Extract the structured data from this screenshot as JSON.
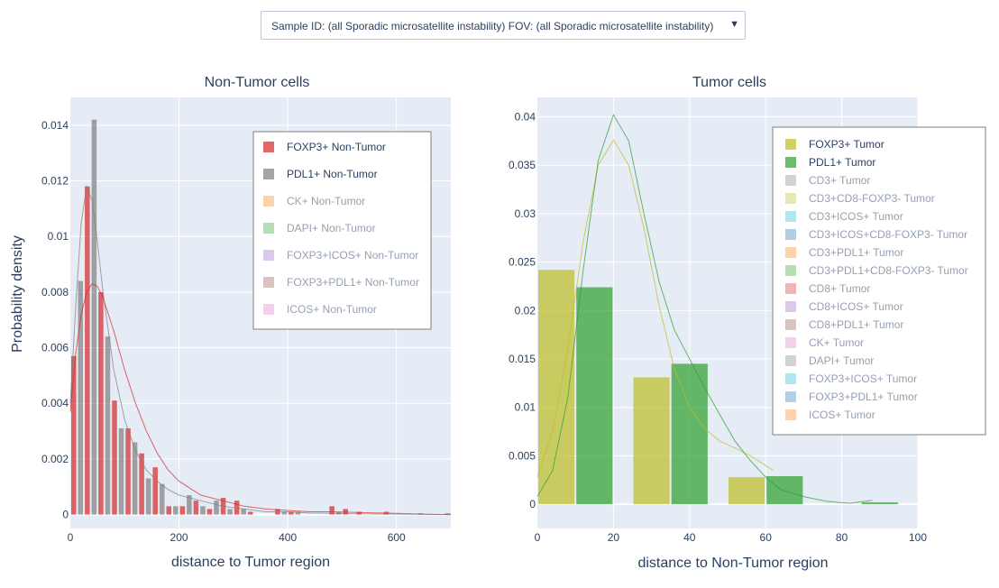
{
  "dropdown": {
    "label": "Sample ID: (all Sporadic microsatellite instability)   FOV: (all Sporadic microsatellite instability)",
    "arrow": "▼"
  },
  "y_axis_title": "Probability density",
  "chart_data": [
    {
      "type": "bar",
      "title": "Non-Tumor cells",
      "xlabel": "distance to Tumor region",
      "ylabel": "Probability density",
      "xlim": [
        0,
        700
      ],
      "ylim": [
        -0.0005,
        0.015
      ],
      "xticks": [
        0,
        200,
        400,
        600
      ],
      "yticks": [
        0,
        0.002,
        0.004,
        0.006,
        0.008,
        0.01,
        0.012,
        0.014
      ],
      "ytick_labels": [
        "0",
        "0.002",
        "0.004",
        "0.006",
        "0.008",
        "0.01",
        "0.012",
        "0.014"
      ],
      "bin_width": 25,
      "series": [
        {
          "name": "FOXP3+ Non-Tumor",
          "color": "#d62728",
          "opacity": 0.7,
          "active": true,
          "x": [
            12.5,
            37.5,
            62.5,
            87.5,
            112.5,
            137.5,
            162.5,
            187.5,
            212.5,
            237.5,
            262.5,
            287.5,
            312.5,
            337.5,
            362.5,
            387.5,
            412.5,
            437.5,
            462.5,
            487.5,
            512.5,
            537.5,
            562.5,
            587.5,
            612.5
          ],
          "values": [
            0.0057,
            0.0118,
            0.008,
            0.0041,
            0.0031,
            0.0022,
            0.0017,
            0.0003,
            0.0003,
            0.0005,
            0.0002,
            0.0006,
            0.0005,
            0.0001,
            0,
            0.0002,
            0.0001,
            0,
            0,
            0.0003,
            0.0002,
            0.0001,
            0,
            0.0001,
            0
          ]
        },
        {
          "name": "PDL1+ Non-Tumor",
          "color": "#7f7f7f",
          "opacity": 0.7,
          "active": true,
          "x": [
            12.5,
            37.5,
            62.5,
            87.5,
            112.5,
            137.5,
            162.5,
            187.5,
            212.5,
            237.5,
            262.5,
            287.5,
            312.5,
            337.5,
            362.5,
            387.5,
            412.5,
            437.5,
            462.5,
            487.5,
            512.5,
            537.5,
            562.5,
            587.5,
            612.5,
            637.5,
            662.5,
            687.5
          ],
          "values": [
            0.0084,
            0.0142,
            0.0064,
            0.0031,
            0.0026,
            0.0013,
            0.0011,
            0.0003,
            0.0007,
            0.0003,
            0.0005,
            0.0002,
            0.0002,
            0,
            0,
            0.0001,
            0.0001,
            0,
            0,
            0.0001,
            0,
            0,
            0,
            0,
            0,
            5e-05,
            0,
            5e-05
          ]
        },
        {
          "name": "CK+ Non-Tumor",
          "color": "#ff7f0e",
          "opacity": 0.35,
          "active": false,
          "x": [],
          "values": []
        },
        {
          "name": "DAPI+ Non-Tumor",
          "color": "#2ca02c",
          "opacity": 0.35,
          "active": false,
          "x": [],
          "values": []
        },
        {
          "name": "FOXP3+ICOS+ Non-Tumor",
          "color": "#9467bd",
          "opacity": 0.35,
          "active": false,
          "x": [],
          "values": []
        },
        {
          "name": "FOXP3+PDL1+ Non-Tumor",
          "color": "#8c564b",
          "opacity": 0.35,
          "active": false,
          "x": [],
          "values": []
        },
        {
          "name": "ICOS+ Non-Tumor",
          "color": "#e377c2",
          "opacity": 0.35,
          "active": false,
          "x": [],
          "values": []
        }
      ],
      "curves": [
        {
          "name": "FOXP3+ Non-Tumor",
          "color": "#d62728",
          "x": [
            0,
            10,
            20,
            30,
            40,
            50,
            60,
            80,
            100,
            120,
            140,
            160,
            180,
            200,
            240,
            280,
            320,
            360,
            400,
            440,
            480,
            520,
            560,
            600,
            640,
            700
          ],
          "y": [
            0.0037,
            0.0058,
            0.0072,
            0.008,
            0.0083,
            0.0082,
            0.0078,
            0.0066,
            0.0052,
            0.004,
            0.003,
            0.0022,
            0.0016,
            0.0012,
            0.0007,
            0.0005,
            0.0003,
            0.0002,
            0.00015,
            0.0001,
            0.0001,
            8e-05,
            6e-05,
            4e-05,
            2e-05,
            0.0
          ]
        },
        {
          "name": "PDL1+ Non-Tumor",
          "color": "#7f7f7f",
          "x": [
            0,
            10,
            20,
            30,
            40,
            50,
            60,
            80,
            100,
            120,
            140,
            160,
            180,
            200,
            240,
            280,
            320,
            360,
            400,
            440,
            480,
            520,
            560,
            600,
            640,
            700
          ],
          "y": [
            0.004,
            0.0075,
            0.0105,
            0.0118,
            0.0113,
            0.0098,
            0.008,
            0.0052,
            0.0034,
            0.0023,
            0.0016,
            0.0012,
            0.0009,
            0.0007,
            0.0005,
            0.0003,
            0.0002,
            0.0001,
            0.0001,
            5e-05,
            4e-05,
            3e-05,
            2e-05,
            2e-05,
            1e-05,
            0.0
          ]
        }
      ]
    },
    {
      "type": "bar",
      "title": "Tumor cells",
      "xlabel": "distance to Non-Tumor region",
      "xlim": [
        0,
        100
      ],
      "ylim": [
        -0.0025,
        0.042
      ],
      "xticks": [
        0,
        20,
        40,
        60,
        80,
        100
      ],
      "yticks": [
        0,
        0.005,
        0.01,
        0.015,
        0.02,
        0.025,
        0.03,
        0.035,
        0.04
      ],
      "ytick_labels": [
        "0",
        "0.005",
        "0.01",
        "0.015",
        "0.02",
        "0.025",
        "0.03",
        "0.035",
        "0.04"
      ],
      "bin_width": 20,
      "series": [
        {
          "name": "FOXP3+ Tumor",
          "color": "#bcbd22",
          "opacity": 0.7,
          "active": true,
          "x": [
            10,
            35,
            60
          ],
          "values": [
            0.0242,
            0.0131,
            0.0028
          ]
        },
        {
          "name": "PDL1+ Tumor",
          "color": "#2ca02c",
          "opacity": 0.7,
          "active": true,
          "x": [
            10,
            35,
            60,
            85
          ],
          "values": [
            0.0224,
            0.0145,
            0.0029,
            0.0002
          ]
        },
        {
          "name": "CD3+ Tumor",
          "color": "#7f7f7f",
          "opacity": 0.35,
          "active": false,
          "x": [],
          "values": []
        },
        {
          "name": "CD3+CD8-FOXP3- Tumor",
          "color": "#bcbd22",
          "opacity": 0.35,
          "active": false,
          "x": [],
          "values": []
        },
        {
          "name": "CD3+ICOS+ Tumor",
          "color": "#17becf",
          "opacity": 0.35,
          "active": false,
          "x": [],
          "values": []
        },
        {
          "name": "CD3+ICOS+CD8-FOXP3- Tumor",
          "color": "#1f77b4",
          "opacity": 0.35,
          "active": false,
          "x": [],
          "values": []
        },
        {
          "name": "CD3+PDL1+ Tumor",
          "color": "#ff7f0e",
          "opacity": 0.35,
          "active": false,
          "x": [],
          "values": []
        },
        {
          "name": "CD3+PDL1+CD8-FOXP3- Tumor",
          "color": "#2ca02c",
          "opacity": 0.35,
          "active": false,
          "x": [],
          "values": []
        },
        {
          "name": "CD8+ Tumor",
          "color": "#d62728",
          "opacity": 0.35,
          "active": false,
          "x": [],
          "values": []
        },
        {
          "name": "CD8+ICOS+ Tumor",
          "color": "#9467bd",
          "opacity": 0.35,
          "active": false,
          "x": [],
          "values": []
        },
        {
          "name": "CD8+PDL1+ Tumor",
          "color": "#8c564b",
          "opacity": 0.35,
          "active": false,
          "x": [],
          "values": []
        },
        {
          "name": "CK+ Tumor",
          "color": "#e377c2",
          "opacity": 0.35,
          "active": false,
          "x": [],
          "values": []
        },
        {
          "name": "DAPI+ Tumor",
          "color": "#7f7f7f",
          "opacity": 0.35,
          "active": false,
          "x": [],
          "values": []
        },
        {
          "name": "FOXP3+ICOS+ Tumor",
          "color": "#17becf",
          "opacity": 0.35,
          "active": false,
          "x": [],
          "values": []
        },
        {
          "name": "FOXP3+PDL1+ Tumor",
          "color": "#1f77b4",
          "opacity": 0.35,
          "active": false,
          "x": [],
          "values": []
        },
        {
          "name": "ICOS+ Tumor",
          "color": "#ff7f0e",
          "opacity": 0.35,
          "active": false,
          "x": [],
          "values": []
        }
      ],
      "curves": [
        {
          "name": "FOXP3+ Tumor",
          "color": "#bcbd22",
          "x": [
            0,
            4,
            8,
            12,
            16,
            20,
            24,
            28,
            32,
            36,
            40,
            44,
            48,
            52,
            56,
            60,
            62
          ],
          "y": [
            0.0028,
            0.0075,
            0.016,
            0.027,
            0.035,
            0.0376,
            0.035,
            0.0285,
            0.0205,
            0.014,
            0.01,
            0.0078,
            0.0065,
            0.0058,
            0.005,
            0.004,
            0.0035
          ]
        },
        {
          "name": "PDL1+ Tumor",
          "color": "#2ca02c",
          "x": [
            0,
            4,
            8,
            12,
            16,
            20,
            24,
            28,
            32,
            36,
            40,
            44,
            48,
            52,
            56,
            60,
            64,
            70,
            76,
            82,
            88
          ],
          "y": [
            0.0008,
            0.0035,
            0.011,
            0.024,
            0.0355,
            0.0402,
            0.0375,
            0.03,
            0.023,
            0.018,
            0.015,
            0.012,
            0.0092,
            0.0065,
            0.0045,
            0.0028,
            0.0015,
            0.0008,
            0.0003,
            0.0001,
            0.0004
          ]
        }
      ]
    }
  ]
}
